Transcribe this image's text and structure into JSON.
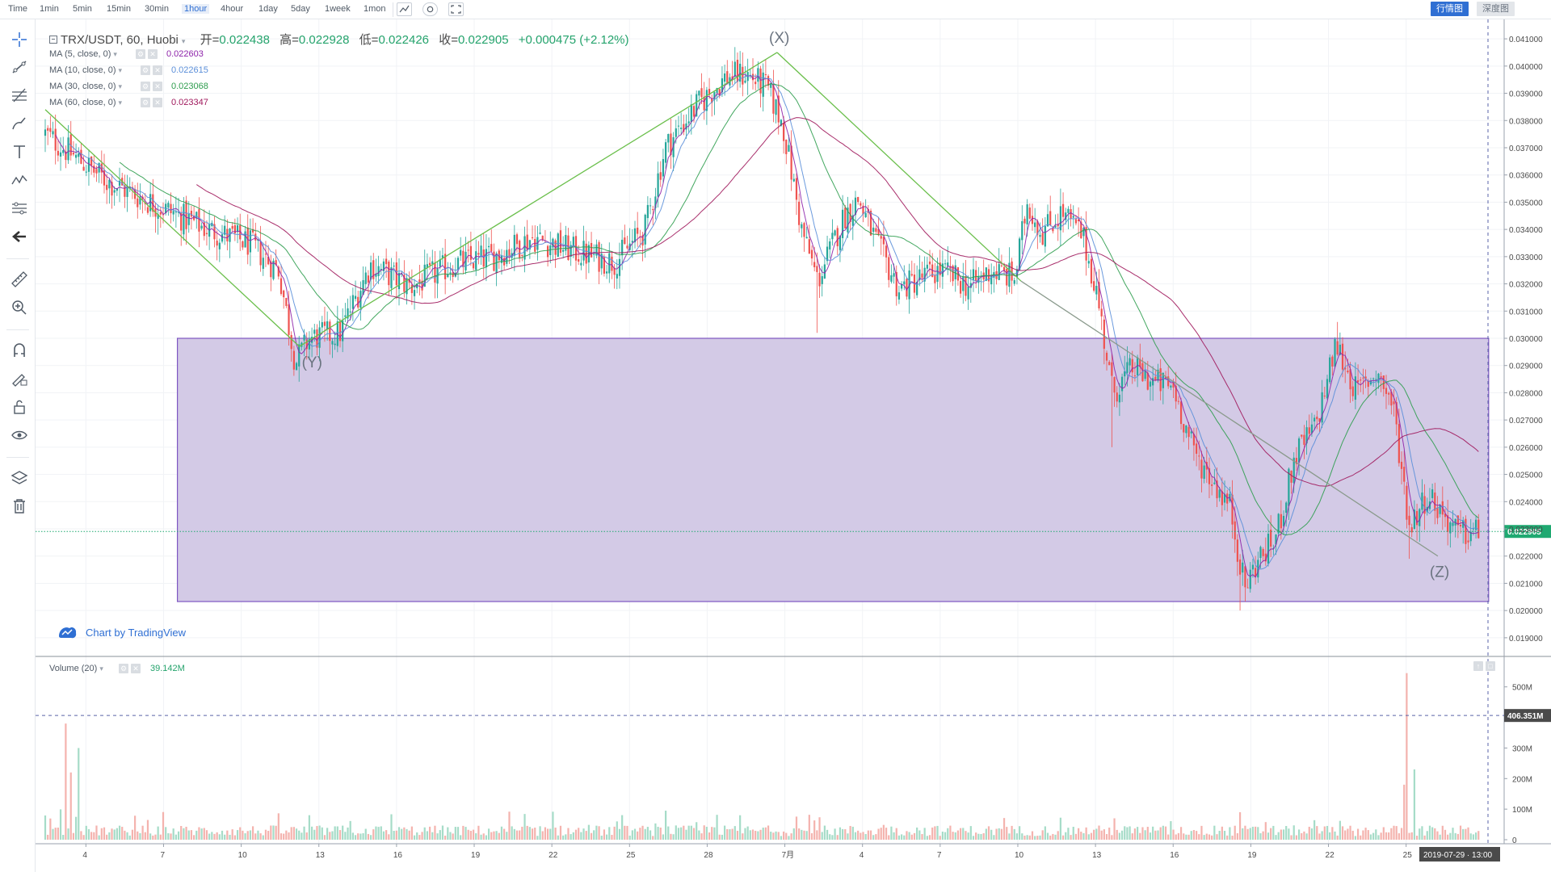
{
  "toolbar": {
    "timeframes": [
      "Time",
      "1min",
      "5min",
      "15min",
      "30min",
      "1hour",
      "4hour",
      "1day",
      "5day",
      "1week",
      "1mon"
    ],
    "active_timeframe": "1hour",
    "icons": [
      "chart-style-icon",
      "indicators-icon",
      "fullscreen-icon"
    ],
    "view_buttons": [
      "行情图",
      "深度图"
    ],
    "active_view": "行情图"
  },
  "sidebar": {
    "tools": [
      "crosshair-icon",
      "trend-line-icon",
      "fib-retracement-icon",
      "brush-icon",
      "text-icon",
      "pattern-icon",
      "prediction-icon",
      "back-arrow-icon",
      "ruler-icon",
      "zoom-in-icon",
      "magnet-icon",
      "lock-drawing-icon",
      "unlock-icon",
      "eye-icon",
      "layers-icon",
      "trash-icon"
    ]
  },
  "legend": {
    "symbol": "TRX/USDT, 60, Huobi",
    "open_label": "开",
    "open": "0.022438",
    "high_label": "高",
    "high": "0.022928",
    "low_label": "低",
    "low": "0.022426",
    "close_label": "收",
    "close": "0.022905",
    "change": "+0.000475",
    "change_pct": "(+2.12%)"
  },
  "ma_indicators": [
    {
      "label": "MA (5, close, 0)",
      "value": "0.022603",
      "color": "#8e24aa"
    },
    {
      "label": "MA (10, close, 0)",
      "value": "0.022615",
      "color": "#5b8fd9"
    },
    {
      "label": "MA (30, close, 0)",
      "value": "0.023068",
      "color": "#2e9d4e"
    },
    {
      "label": "MA (60, close, 0)",
      "value": "0.023347",
      "color": "#a0185c"
    }
  ],
  "volume": {
    "label": "Volume (20)",
    "value": "39.142M"
  },
  "credit": {
    "text": "Chart by TradingView"
  },
  "crosshair": {
    "date_label": "2019-07-29 · 13:00",
    "volume_label": "406.351M"
  },
  "colors": {
    "up": "#26a69a",
    "down": "#ef5350",
    "up_vol": "#a6dcc8",
    "down_vol": "#f4b3ae",
    "rectangle": "#d3cae6",
    "rectangle_border": "#7e57c2",
    "pattern_line": "#6abf4b",
    "last_price": "#1fa971"
  },
  "chart_data": {
    "type": "candlestick",
    "symbol": "TRX/USDT",
    "interval": "60",
    "x_tick_labels": [
      "4",
      "7",
      "10",
      "13",
      "16",
      "19",
      "22",
      "25",
      "28",
      "7月",
      "4",
      "7",
      "10",
      "13",
      "16",
      "19",
      "22",
      "25"
    ],
    "y_axis": {
      "range": [
        0.0187,
        0.0413
      ],
      "ticks": [
        "0.041000",
        "0.040000",
        "0.039000",
        "0.038000",
        "0.037000",
        "0.036000",
        "0.035000",
        "0.034000",
        "0.033000",
        "0.032000",
        "0.031000",
        "0.030000",
        "0.029000",
        "0.028000",
        "0.027000",
        "0.026000",
        "0.025000",
        "0.024000",
        "0.023000",
        "0.022000",
        "0.021000",
        "0.020000",
        "0.019000"
      ],
      "last_price_label": "0.022905"
    },
    "price_path": [
      [
        0,
        0.0375
      ],
      [
        3,
        0.0358
      ],
      [
        6,
        0.0347
      ],
      [
        8,
        0.034
      ],
      [
        10,
        0.0335
      ],
      [
        11.5,
        0.0325
      ],
      [
        12.3,
        0.0291
      ],
      [
        13,
        0.03
      ],
      [
        14.5,
        0.0302
      ],
      [
        16,
        0.0327
      ],
      [
        18,
        0.0319
      ],
      [
        20,
        0.0327
      ],
      [
        22,
        0.033
      ],
      [
        24,
        0.0337
      ],
      [
        26,
        0.0332
      ],
      [
        28,
        0.0328
      ],
      [
        29.5,
        0.034
      ],
      [
        30.5,
        0.037
      ],
      [
        32,
        0.0385
      ],
      [
        33.5,
        0.0396
      ],
      [
        34.5,
        0.0397
      ],
      [
        35.5,
        0.0392
      ],
      [
        36.3,
        0.0378
      ],
      [
        37.2,
        0.034
      ],
      [
        38,
        0.0321
      ],
      [
        39.3,
        0.0345
      ],
      [
        40,
        0.0351
      ],
      [
        41,
        0.0333
      ],
      [
        42,
        0.0318
      ],
      [
        43,
        0.0322
      ],
      [
        44,
        0.0325
      ],
      [
        45.5,
        0.0319
      ],
      [
        46.5,
        0.0325
      ],
      [
        47.7,
        0.0322
      ],
      [
        48.3,
        0.035
      ],
      [
        49,
        0.0339
      ],
      [
        50,
        0.0346
      ],
      [
        51,
        0.0338
      ],
      [
        51.7,
        0.0318
      ],
      [
        52.5,
        0.028
      ],
      [
        53.5,
        0.0289
      ],
      [
        54.5,
        0.0284
      ],
      [
        55.5,
        0.0282
      ],
      [
        56.5,
        0.0258
      ],
      [
        57.5,
        0.0247
      ],
      [
        58.3,
        0.0238
      ],
      [
        59,
        0.0208
      ],
      [
        59.6,
        0.0218
      ],
      [
        60.5,
        0.0226
      ],
      [
        61.5,
        0.0257
      ],
      [
        62.5,
        0.0268
      ],
      [
        63.5,
        0.0298
      ],
      [
        64.5,
        0.028
      ],
      [
        65.5,
        0.0288
      ],
      [
        66.3,
        0.0275
      ],
      [
        67.1,
        0.0231
      ],
      [
        68,
        0.0243
      ],
      [
        69.5,
        0.0228
      ],
      [
        70.5,
        0.0229
      ]
    ],
    "notable_extremes": [
      {
        "x": 12.3,
        "low": 0.029
      },
      {
        "x": 34.3,
        "high": 0.0405
      },
      {
        "x": 38,
        "low": 0.0302
      },
      {
        "x": 50,
        "high": 0.0355
      },
      {
        "x": 52.5,
        "low": 0.026
      },
      {
        "x": 58.8,
        "low": 0.02
      },
      {
        "x": 63.6,
        "high": 0.0306
      },
      {
        "x": 67.1,
        "low": 0.0219
      }
    ],
    "drawings": {
      "rectangle": {
        "price_top": 0.03,
        "price_bottom": 0.02033,
        "x_start": 6.5,
        "x_end": 71
      },
      "xyz_pattern": [
        {
          "label": "",
          "x": 0,
          "price": 0.0384
        },
        {
          "label": "(Y)",
          "x": 12.5,
          "price": 0.0297
        },
        {
          "label": "(X)",
          "x": 36,
          "price": 0.0405
        },
        {
          "label": "",
          "x": 48,
          "price": 0.0321
        },
        {
          "label": "(Z)",
          "x": 68.5,
          "price": 0.022
        }
      ]
    },
    "volume_axis": {
      "range": [
        0,
        560
      ],
      "ticks": [
        "500M",
        "400M",
        "300M",
        "200M",
        "100M",
        "0"
      ]
    },
    "volume_spikes": [
      {
        "x": 1.0,
        "value": 380
      },
      {
        "x": 1.3,
        "value": 220
      },
      {
        "x": 1.6,
        "value": 300
      },
      {
        "x": 67.0,
        "value": 545
      },
      {
        "x": 66.8,
        "value": 180
      },
      {
        "x": 67.4,
        "value": 230
      },
      {
        "x": 58.8,
        "value": 90
      },
      {
        "x": 52.6,
        "value": 70
      },
      {
        "x": 30.5,
        "value": 95
      },
      {
        "x": 34.2,
        "value": 80
      }
    ]
  }
}
